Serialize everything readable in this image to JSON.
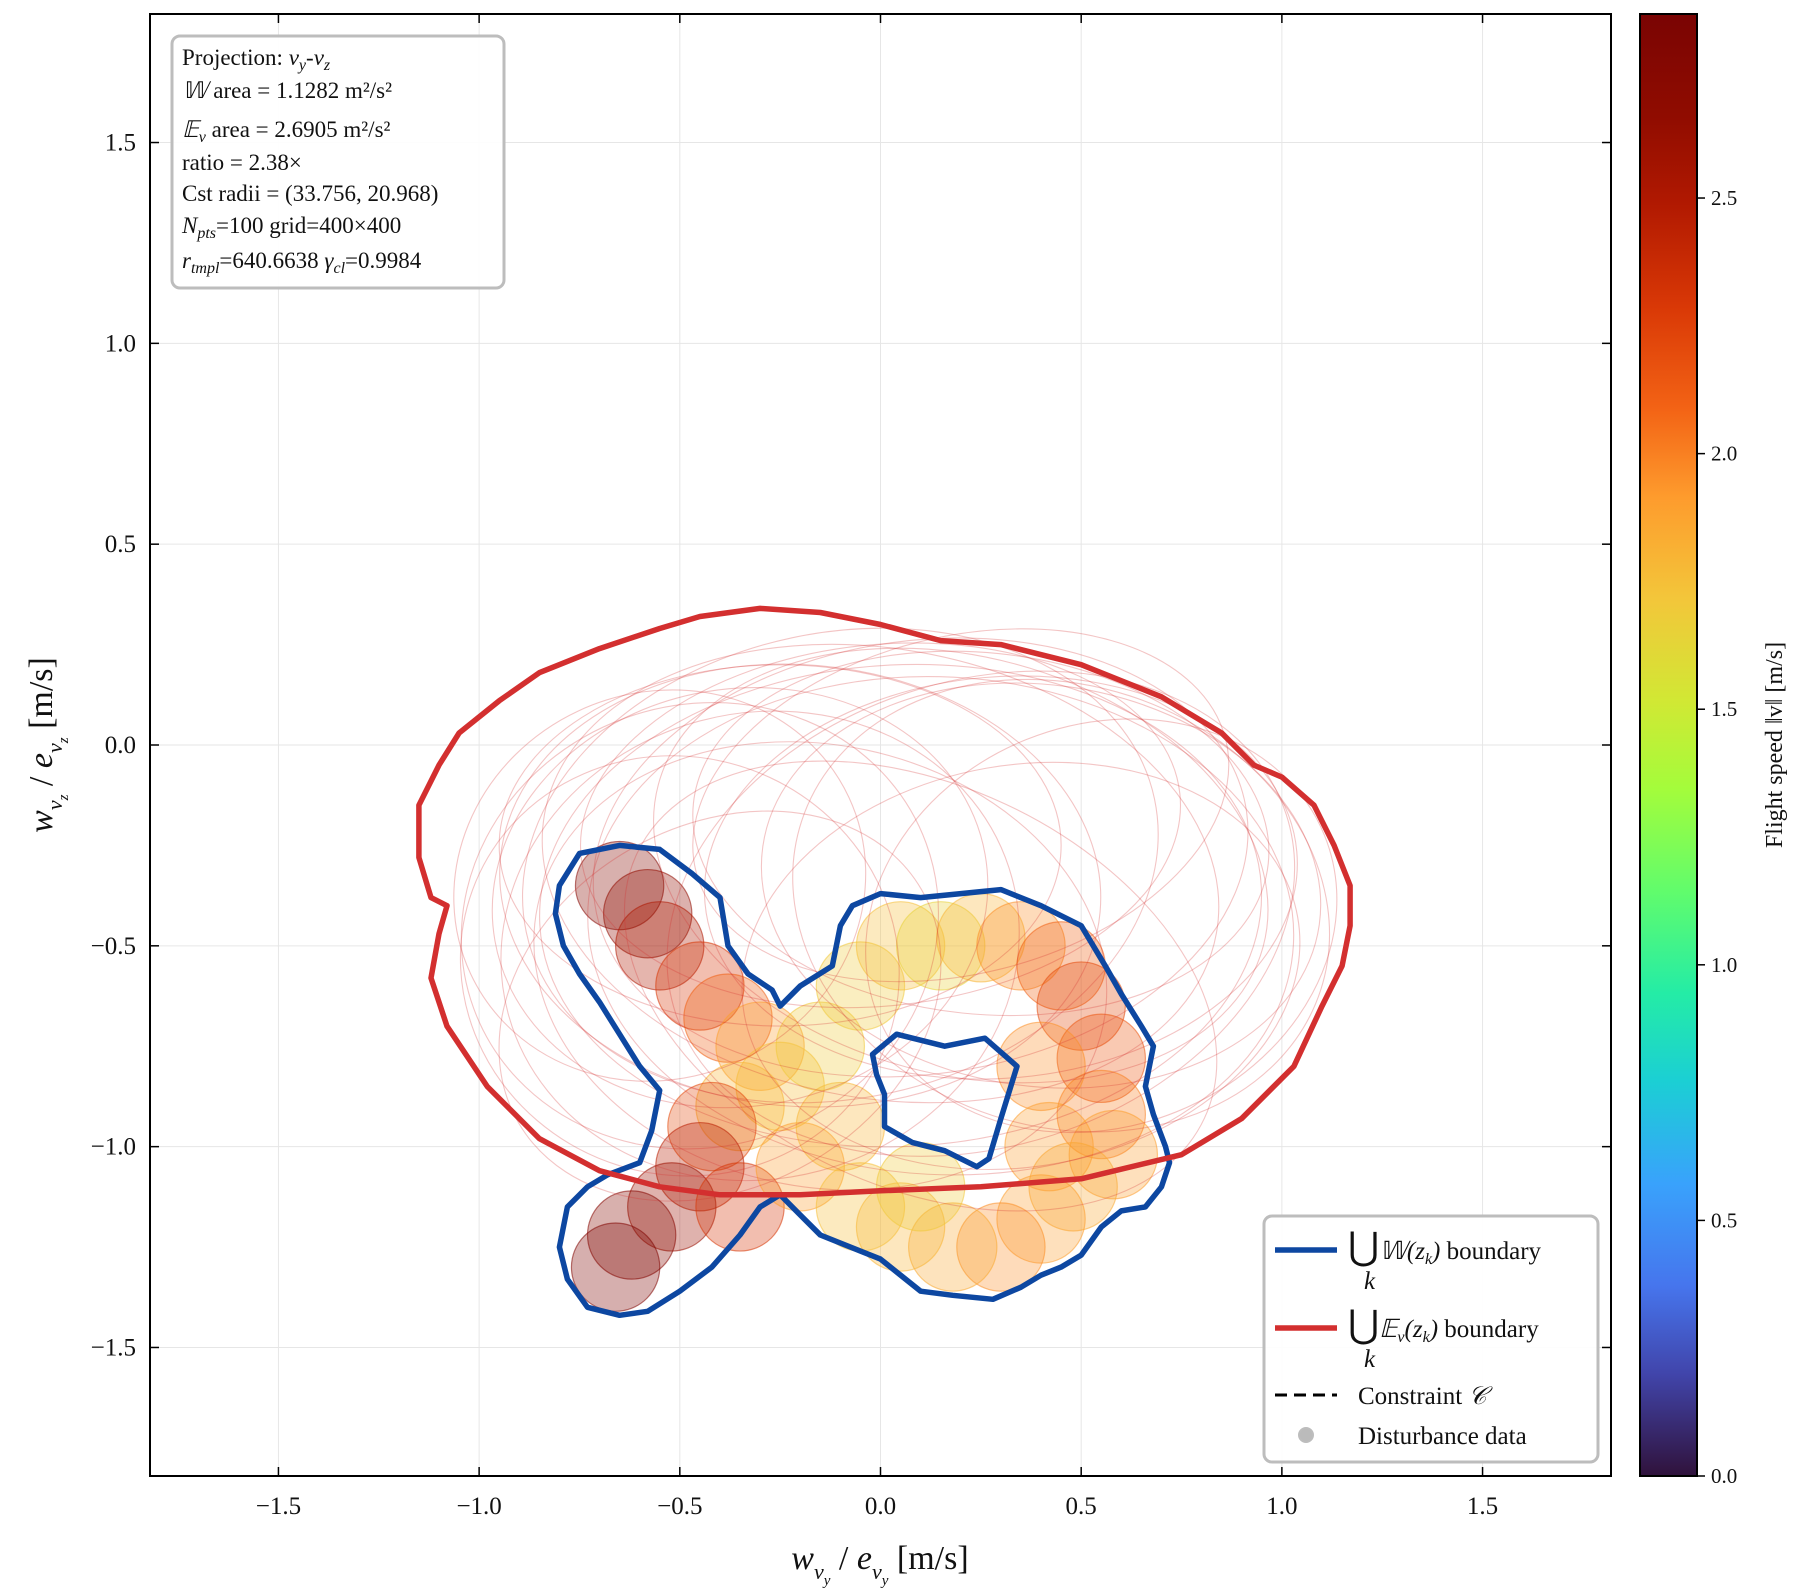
{
  "chart_data": {
    "type": "scatter",
    "title": "",
    "xlabel": "w_{v_y} / e_{v_y} [m/s]",
    "ylabel": "w_{v_z} / e_{v_z} [m/s]",
    "xlim": [
      -1.82,
      1.82
    ],
    "ylim": [
      -1.82,
      1.82
    ],
    "x_ticks": [
      -1.5,
      -1.0,
      -0.5,
      0.0,
      0.5,
      1.0,
      1.5
    ],
    "y_ticks": [
      -1.5,
      -1.0,
      -0.5,
      0.0,
      0.5,
      1.0,
      1.5
    ],
    "x_tick_labels": [
      "−1.5",
      "−1.0",
      "−0.5",
      "0.0",
      "0.5",
      "1.0",
      "1.5"
    ],
    "y_tick_labels": [
      "−1.5",
      "−1.0",
      "−0.5",
      "0.0",
      "0.5",
      "1.0",
      "1.5"
    ],
    "grid": true,
    "legend_position": "lower-right",
    "info_box": {
      "projection_prefix": "Projection: ",
      "projection_value": "v_y-v_z",
      "w_area_symbol": "𝕎",
      "w_area": " area = 1.1282 m²/s²",
      "e_area_symbol": "𝔼_v",
      "e_area": " area = 2.6905 m²/s²",
      "ratio": "ratio = 2.38×",
      "cst_radii": "Cst radii = (33.756, 20.968)",
      "npts_symbol": "N_pts",
      "npts": "=100",
      "grid": "grid=400×400",
      "rtmpl_symbol": "r_tmpl",
      "rtmpl": "=640.6638",
      "gamma_symbol": "γ_cl",
      "gamma": "=0.9984"
    },
    "legend": [
      {
        "label": "⋃_k 𝕎(z_k) boundary",
        "color": "#0d47a1",
        "style": "solid"
      },
      {
        "label": "⋃_k 𝔼_v(z_k) boundary",
        "color": "#d32f2f",
        "style": "solid"
      },
      {
        "label": "Constraint 𝒞",
        "color": "#000000",
        "style": "dashed"
      },
      {
        "label": "Disturbance data",
        "color": "#9e9e9e",
        "style": "marker"
      }
    ],
    "legend_text": {
      "w_tail": " boundary",
      "e_tail": " boundary",
      "constraint": "Constraint ",
      "constraint_symbol": "𝒞",
      "disturbance": "Disturbance data"
    },
    "colorbar": {
      "label": "Flight speed ‖v‖ [m/s]",
      "min": 0.0,
      "max": 2.86,
      "ticks": [
        0.0,
        0.5,
        1.0,
        1.5,
        2.0,
        2.5
      ],
      "tick_labels": [
        "0.0",
        "0.5",
        "1.0",
        "1.5",
        "2.0",
        "2.5"
      ],
      "colormap": "turbo"
    },
    "w_union_boundary": [
      [
        -0.8,
        -0.35
      ],
      [
        -0.75,
        -0.27
      ],
      [
        -0.65,
        -0.25
      ],
      [
        -0.55,
        -0.26
      ],
      [
        -0.47,
        -0.32
      ],
      [
        -0.4,
        -0.38
      ],
      [
        -0.38,
        -0.5
      ],
      [
        -0.33,
        -0.57
      ],
      [
        -0.27,
        -0.61
      ],
      [
        -0.25,
        -0.65
      ],
      [
        -0.2,
        -0.6
      ],
      [
        -0.12,
        -0.55
      ],
      [
        -0.1,
        -0.45
      ],
      [
        -0.07,
        -0.4
      ],
      [
        0.0,
        -0.37
      ],
      [
        0.1,
        -0.38
      ],
      [
        0.2,
        -0.37
      ],
      [
        0.3,
        -0.36
      ],
      [
        0.4,
        -0.4
      ],
      [
        0.5,
        -0.45
      ],
      [
        0.56,
        -0.55
      ],
      [
        0.6,
        -0.62
      ],
      [
        0.65,
        -0.7
      ],
      [
        0.68,
        -0.75
      ],
      [
        0.66,
        -0.85
      ],
      [
        0.68,
        -0.92
      ],
      [
        0.71,
        -1.0
      ],
      [
        0.72,
        -1.04
      ],
      [
        0.7,
        -1.1
      ],
      [
        0.66,
        -1.15
      ],
      [
        0.6,
        -1.16
      ],
      [
        0.55,
        -1.2
      ],
      [
        0.5,
        -1.27
      ],
      [
        0.45,
        -1.3
      ],
      [
        0.4,
        -1.32
      ],
      [
        0.35,
        -1.35
      ],
      [
        0.28,
        -1.38
      ],
      [
        0.18,
        -1.37
      ],
      [
        0.1,
        -1.36
      ],
      [
        0.05,
        -1.32
      ],
      [
        0.0,
        -1.28
      ],
      [
        -0.05,
        -1.26
      ],
      [
        -0.15,
        -1.22
      ],
      [
        -0.2,
        -1.17
      ],
      [
        -0.25,
        -1.12
      ],
      [
        -0.3,
        -1.15
      ],
      [
        -0.35,
        -1.22
      ],
      [
        -0.42,
        -1.3
      ],
      [
        -0.5,
        -1.36
      ],
      [
        -0.58,
        -1.41
      ],
      [
        -0.65,
        -1.42
      ],
      [
        -0.73,
        -1.4
      ],
      [
        -0.78,
        -1.33
      ],
      [
        -0.8,
        -1.25
      ],
      [
        -0.78,
        -1.15
      ],
      [
        -0.73,
        -1.1
      ],
      [
        -0.68,
        -1.07
      ],
      [
        -0.6,
        -1.04
      ],
      [
        -0.57,
        -0.96
      ],
      [
        -0.55,
        -0.86
      ],
      [
        -0.6,
        -0.8
      ],
      [
        -0.65,
        -0.72
      ],
      [
        -0.7,
        -0.64
      ],
      [
        -0.75,
        -0.57
      ],
      [
        -0.79,
        -0.5
      ],
      [
        -0.81,
        -0.42
      ]
    ],
    "w_union_hole": [
      [
        -0.02,
        -0.77
      ],
      [
        0.04,
        -0.72
      ],
      [
        0.16,
        -0.75
      ],
      [
        0.26,
        -0.73
      ],
      [
        0.34,
        -0.8
      ],
      [
        0.3,
        -0.93
      ],
      [
        0.27,
        -1.03
      ],
      [
        0.24,
        -1.05
      ],
      [
        0.16,
        -1.01
      ],
      [
        0.08,
        -0.99
      ],
      [
        0.01,
        -0.95
      ],
      [
        0.01,
        -0.87
      ],
      [
        -0.01,
        -0.82
      ]
    ],
    "e_union_boundary": [
      [
        -1.15,
        -0.15
      ],
      [
        -1.1,
        -0.05
      ],
      [
        -1.05,
        0.03
      ],
      [
        -0.95,
        0.11
      ],
      [
        -0.85,
        0.18
      ],
      [
        -0.7,
        0.24
      ],
      [
        -0.55,
        0.29
      ],
      [
        -0.45,
        0.32
      ],
      [
        -0.3,
        0.34
      ],
      [
        -0.15,
        0.33
      ],
      [
        0.0,
        0.3
      ],
      [
        0.15,
        0.26
      ],
      [
        0.3,
        0.25
      ],
      [
        0.5,
        0.2
      ],
      [
        0.7,
        0.12
      ],
      [
        0.85,
        0.03
      ],
      [
        0.93,
        -0.05
      ],
      [
        1.0,
        -0.08
      ],
      [
        1.08,
        -0.15
      ],
      [
        1.13,
        -0.25
      ],
      [
        1.17,
        -0.35
      ],
      [
        1.17,
        -0.45
      ],
      [
        1.15,
        -0.55
      ],
      [
        1.1,
        -0.65
      ],
      [
        1.03,
        -0.8
      ],
      [
        0.9,
        -0.93
      ],
      [
        0.75,
        -1.02
      ],
      [
        0.5,
        -1.08
      ],
      [
        0.25,
        -1.1
      ],
      [
        0.0,
        -1.11
      ],
      [
        -0.2,
        -1.12
      ],
      [
        -0.4,
        -1.12
      ],
      [
        -0.55,
        -1.1
      ],
      [
        -0.7,
        -1.06
      ],
      [
        -0.85,
        -0.98
      ],
      [
        -0.98,
        -0.85
      ],
      [
        -1.08,
        -0.7
      ],
      [
        -1.12,
        -0.58
      ],
      [
        -1.1,
        -0.47
      ],
      [
        -1.08,
        -0.4
      ],
      [
        -1.12,
        -0.38
      ],
      [
        -1.15,
        -0.28
      ]
    ],
    "e_ellipses": [
      {
        "cx": -0.35,
        "cy": -0.38,
        "rx": 0.62,
        "ry": 0.52,
        "rot": 10
      },
      {
        "cx": -0.2,
        "cy": -0.35,
        "rx": 0.75,
        "ry": 0.55,
        "rot": -5
      },
      {
        "cx": -0.1,
        "cy": -0.3,
        "rx": 0.8,
        "ry": 0.58,
        "rot": 12
      },
      {
        "cx": 0.0,
        "cy": -0.32,
        "rx": 0.85,
        "ry": 0.56,
        "rot": -10
      },
      {
        "cx": 0.1,
        "cy": -0.28,
        "rx": 0.82,
        "ry": 0.54,
        "rot": 8
      },
      {
        "cx": 0.2,
        "cy": -0.3,
        "rx": 0.78,
        "ry": 0.52,
        "rot": -15
      },
      {
        "cx": 0.3,
        "cy": -0.33,
        "rx": 0.74,
        "ry": 0.5,
        "rot": 5
      },
      {
        "cx": 0.4,
        "cy": -0.35,
        "rx": 0.7,
        "ry": 0.5,
        "rot": -8
      },
      {
        "cx": -0.45,
        "cy": -0.45,
        "rx": 0.6,
        "ry": 0.55,
        "rot": 20
      },
      {
        "cx": -0.5,
        "cy": -0.55,
        "rx": 0.55,
        "ry": 0.52,
        "rot": -20
      },
      {
        "cx": -0.3,
        "cy": -0.5,
        "rx": 0.65,
        "ry": 0.58,
        "rot": 15
      },
      {
        "cx": 0.05,
        "cy": -0.4,
        "rx": 0.9,
        "ry": 0.6,
        "rot": 3
      },
      {
        "cx": 0.15,
        "cy": -0.45,
        "rx": 0.88,
        "ry": 0.62,
        "rot": -3
      },
      {
        "cx": 0.25,
        "cy": -0.42,
        "rx": 0.8,
        "ry": 0.58,
        "rot": 18
      },
      {
        "cx": 0.45,
        "cy": -0.4,
        "rx": 0.68,
        "ry": 0.55,
        "rot": -18
      },
      {
        "cx": -0.25,
        "cy": -0.25,
        "rx": 0.7,
        "ry": 0.45,
        "rot": 0
      },
      {
        "cx": 0.0,
        "cy": -0.2,
        "rx": 0.75,
        "ry": 0.45,
        "rot": 6
      },
      {
        "cx": 0.25,
        "cy": -0.22,
        "rx": 0.72,
        "ry": 0.45,
        "rot": -6
      },
      {
        "cx": -0.55,
        "cy": -0.35,
        "rx": 0.52,
        "ry": 0.48,
        "rot": 25
      },
      {
        "cx": 0.55,
        "cy": -0.45,
        "rx": 0.6,
        "ry": 0.5,
        "rot": 22
      },
      {
        "cx": -0.15,
        "cy": -0.55,
        "rx": 0.72,
        "ry": 0.55,
        "rot": -12
      },
      {
        "cx": 0.35,
        "cy": -0.55,
        "rx": 0.7,
        "ry": 0.5,
        "rot": 10
      },
      {
        "cx": -0.4,
        "cy": -0.65,
        "rx": 0.58,
        "ry": 0.45,
        "rot": 30
      },
      {
        "cx": 0.1,
        "cy": -0.6,
        "rx": 0.78,
        "ry": 0.5,
        "rot": -25
      },
      {
        "cx": 0.2,
        "cy": -0.15,
        "rx": 0.68,
        "ry": 0.42,
        "rot": 14
      }
    ],
    "w_disks": [
      {
        "x": -0.65,
        "y": -0.35,
        "r": 0.11,
        "speed": 2.75
      },
      {
        "x": -0.58,
        "y": -0.42,
        "r": 0.11,
        "speed": 2.65
      },
      {
        "x": -0.55,
        "y": -0.5,
        "r": 0.11,
        "speed": 2.5
      },
      {
        "x": -0.45,
        "y": -0.6,
        "r": 0.11,
        "speed": 2.3
      },
      {
        "x": -0.38,
        "y": -0.68,
        "r": 0.11,
        "speed": 2.1
      },
      {
        "x": -0.3,
        "y": -0.75,
        "r": 0.11,
        "speed": 1.9
      },
      {
        "x": -0.25,
        "y": -0.85,
        "r": 0.11,
        "speed": 1.75
      },
      {
        "x": -0.35,
        "y": -0.9,
        "r": 0.11,
        "speed": 1.8
      },
      {
        "x": -0.42,
        "y": -0.95,
        "r": 0.11,
        "speed": 2.2
      },
      {
        "x": -0.45,
        "y": -1.05,
        "r": 0.11,
        "speed": 2.45
      },
      {
        "x": -0.52,
        "y": -1.15,
        "r": 0.11,
        "speed": 2.6
      },
      {
        "x": -0.62,
        "y": -1.22,
        "r": 0.11,
        "speed": 2.75
      },
      {
        "x": -0.66,
        "y": -1.3,
        "r": 0.11,
        "speed": 2.8
      },
      {
        "x": -0.35,
        "y": -1.15,
        "r": 0.11,
        "speed": 2.3
      },
      {
        "x": -0.2,
        "y": -1.05,
        "r": 0.11,
        "speed": 1.9
      },
      {
        "x": -0.1,
        "y": -0.95,
        "r": 0.11,
        "speed": 1.8
      },
      {
        "x": -0.05,
        "y": -0.6,
        "r": 0.11,
        "speed": 1.7
      },
      {
        "x": 0.05,
        "y": -0.5,
        "r": 0.11,
        "speed": 1.75
      },
      {
        "x": 0.15,
        "y": -0.5,
        "r": 0.11,
        "speed": 1.65
      },
      {
        "x": 0.25,
        "y": -0.48,
        "r": 0.11,
        "speed": 1.8
      },
      {
        "x": 0.35,
        "y": -0.5,
        "r": 0.11,
        "speed": 1.95
      },
      {
        "x": 0.45,
        "y": -0.55,
        "r": 0.11,
        "speed": 2.1
      },
      {
        "x": 0.5,
        "y": -0.65,
        "r": 0.11,
        "speed": 2.2
      },
      {
        "x": 0.55,
        "y": -0.78,
        "r": 0.11,
        "speed": 2.15
      },
      {
        "x": 0.55,
        "y": -0.92,
        "r": 0.11,
        "speed": 2.0
      },
      {
        "x": 0.58,
        "y": -1.02,
        "r": 0.11,
        "speed": 1.9
      },
      {
        "x": 0.48,
        "y": -1.1,
        "r": 0.11,
        "speed": 1.85
      },
      {
        "x": 0.4,
        "y": -1.18,
        "r": 0.11,
        "speed": 1.9
      },
      {
        "x": 0.3,
        "y": -1.25,
        "r": 0.11,
        "speed": 1.95
      },
      {
        "x": 0.18,
        "y": -1.25,
        "r": 0.11,
        "speed": 1.85
      },
      {
        "x": 0.05,
        "y": -1.2,
        "r": 0.11,
        "speed": 1.8
      },
      {
        "x": -0.05,
        "y": -1.15,
        "r": 0.11,
        "speed": 1.75
      },
      {
        "x": 0.1,
        "y": -1.1,
        "r": 0.11,
        "speed": 1.7
      },
      {
        "x": 0.4,
        "y": -0.8,
        "r": 0.11,
        "speed": 1.95
      },
      {
        "x": 0.42,
        "y": -1.0,
        "r": 0.11,
        "speed": 1.9
      },
      {
        "x": -0.15,
        "y": -0.75,
        "r": 0.11,
        "speed": 1.7
      }
    ]
  }
}
